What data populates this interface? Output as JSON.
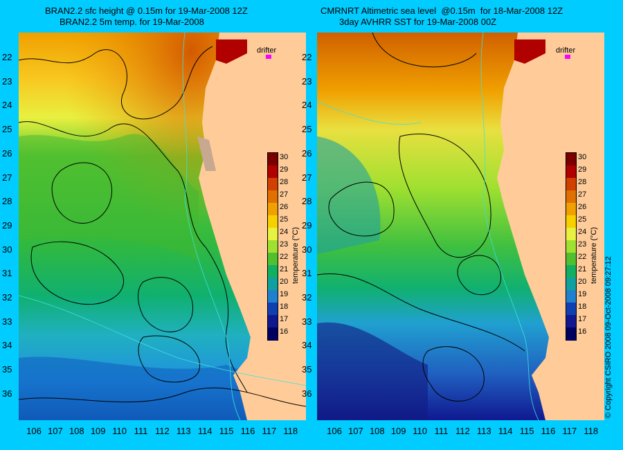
{
  "left_panel": {
    "title_line1": "BRAN2.2 sfc height @ 0.15m for 19-Mar-2008 12Z",
    "title_line2": "BRAN2.2 5m temp. for 19-Mar-2008"
  },
  "right_panel": {
    "title_line1": "CMRNRT Altimetric sea level  @0.15m  for 18-Mar-2008 12Z",
    "title_line2": "3day AVHRR SST for 19-Mar-2008 00Z"
  },
  "lat_ticks": [
    "22",
    "23",
    "24",
    "25",
    "26",
    "27",
    "28",
    "29",
    "30",
    "31",
    "32",
    "33",
    "34",
    "35",
    "36"
  ],
  "lon_ticks": [
    "106",
    "107",
    "108",
    "109",
    "110",
    "111",
    "112",
    "113",
    "114",
    "115",
    "116",
    "117",
    "118"
  ],
  "colorbar": {
    "labels": [
      "30",
      "29",
      "28",
      "27",
      "26",
      "25",
      "24",
      "23",
      "22",
      "21",
      "20",
      "19",
      "18",
      "17",
      "16"
    ],
    "title": "temperature (°C)",
    "colors": [
      "#7a0000",
      "#b00000",
      "#d04000",
      "#e07000",
      "#f0a000",
      "#f8d000",
      "#e8f040",
      "#a0e030",
      "#50c030",
      "#10b060",
      "#10a0a0",
      "#2080d0",
      "#1040b0",
      "#101890",
      "#000060"
    ]
  },
  "drifter_label": "drifter",
  "drifter_color": "#ff00ff",
  "land_color": "#ffcc99",
  "background_color": "#00ccff",
  "copyright": "© Copyright CSIRO 2008   09-Oct-2008 09:27:12"
}
